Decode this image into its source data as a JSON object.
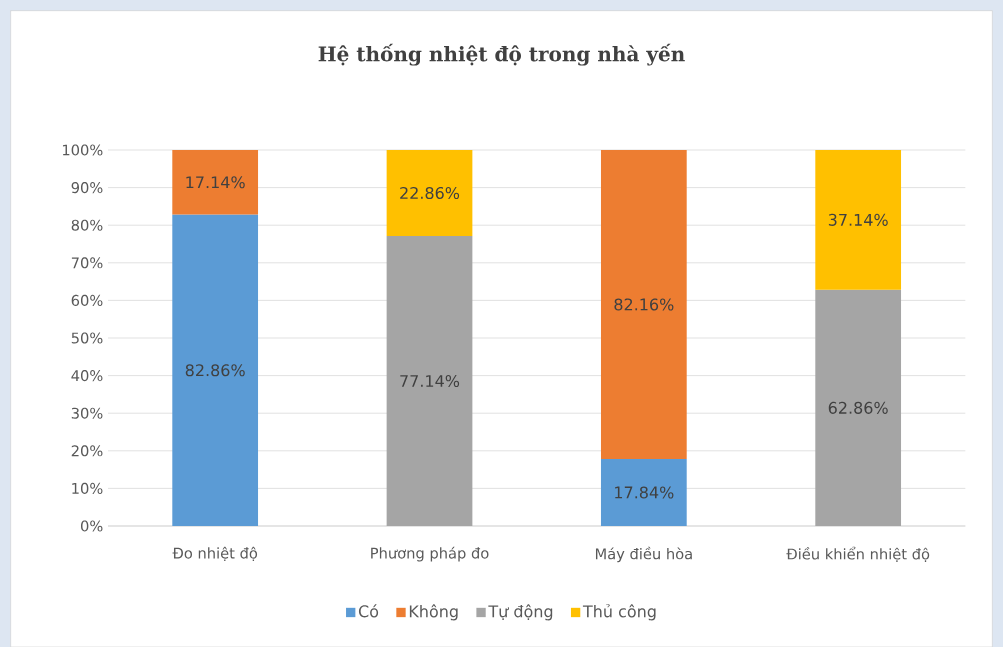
{
  "chart_data": {
    "type": "bar",
    "title": "Hệ thống nhiệt độ trong nhà yến",
    "categories": [
      "Đo nhiệt độ",
      "Phương pháp đo",
      "Máy điều hòa",
      "Điều khiển nhiệt độ"
    ],
    "stacked": true,
    "series": [
      {
        "name": "Có",
        "color": "#5b9bd5",
        "values": [
          82.86,
          null,
          17.84,
          null
        ],
        "value_labels": [
          "82.86%",
          null,
          "17.84%",
          null
        ]
      },
      {
        "name": "Không",
        "color": "#ed7d31",
        "values": [
          17.14,
          null,
          82.16,
          null
        ],
        "value_labels": [
          "17.14%",
          null,
          "82.16%",
          null
        ]
      },
      {
        "name": "Tự động",
        "color": "#a5a5a5",
        "values": [
          null,
          77.14,
          null,
          62.86
        ],
        "value_labels": [
          null,
          "77.14%",
          null,
          "62.86%"
        ]
      },
      {
        "name": "Thủ công",
        "color": "#ffc000",
        "values": [
          null,
          22.86,
          null,
          37.14
        ],
        "value_labels": [
          null,
          "22.86%",
          null,
          "37.14%"
        ]
      }
    ],
    "ylim": [
      0,
      100
    ],
    "yticks": [
      {
        "value": 0,
        "label": "0%"
      },
      {
        "value": 10,
        "label": "10%"
      },
      {
        "value": 20,
        "label": "20%"
      },
      {
        "value": 30,
        "label": "30%"
      },
      {
        "value": 40,
        "label": "40%"
      },
      {
        "value": 50,
        "label": "50%"
      },
      {
        "value": 60,
        "label": "60%"
      },
      {
        "value": 70,
        "label": "70%"
      },
      {
        "value": 80,
        "label": "80%"
      },
      {
        "value": 90,
        "label": "90%"
      },
      {
        "value": 100,
        "label": "100%"
      }
    ],
    "grid": "y",
    "legend": "bottom"
  }
}
